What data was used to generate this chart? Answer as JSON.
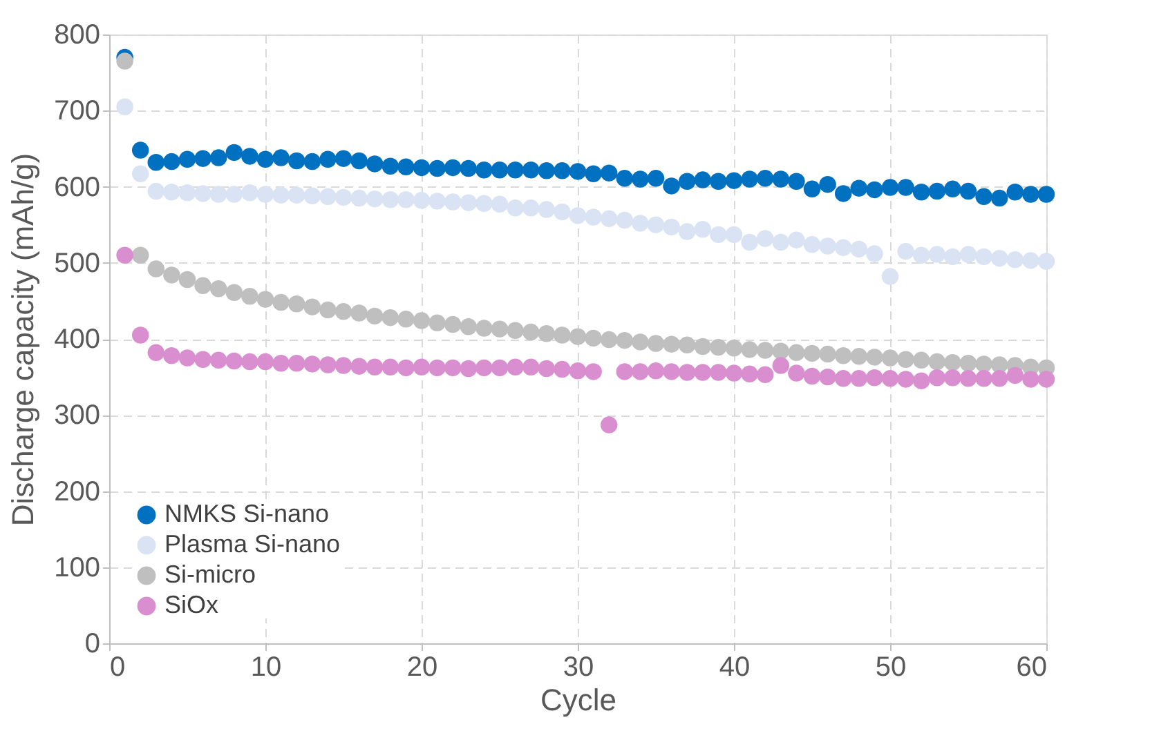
{
  "chart_data": {
    "type": "scatter",
    "xlabel": "Cycle",
    "ylabel": "Discharge capacity (mAh/g)",
    "x": [
      1,
      2,
      3,
      4,
      5,
      6,
      7,
      8,
      9,
      10,
      11,
      12,
      13,
      14,
      15,
      16,
      17,
      18,
      19,
      20,
      21,
      22,
      23,
      24,
      25,
      26,
      27,
      28,
      29,
      30,
      31,
      32,
      33,
      34,
      35,
      36,
      37,
      38,
      39,
      40,
      41,
      42,
      43,
      44,
      45,
      46,
      47,
      48,
      49,
      50,
      51,
      52,
      53,
      54,
      55,
      56,
      57,
      58,
      59,
      60
    ],
    "series": [
      {
        "name": "NMKS Si-nano",
        "color": "#0070c0",
        "values": [
          770,
          648,
          632,
          633,
          636,
          637,
          638,
          645,
          640,
          636,
          638,
          634,
          633,
          636,
          637,
          634,
          630,
          627,
          626,
          625,
          624,
          625,
          624,
          622,
          622,
          622,
          622,
          621,
          621,
          620,
          617,
          618,
          611,
          610,
          611,
          601,
          607,
          609,
          607,
          608,
          610,
          611,
          610,
          607,
          597,
          603,
          591,
          598,
          596,
          599,
          599,
          593,
          594,
          597,
          594,
          587,
          585,
          593,
          590,
          590
        ]
      },
      {
        "name": "Plasma Si-nano",
        "color": "#dae3f3",
        "values": [
          705,
          617,
          594,
          593,
          592,
          591,
          590,
          590,
          592,
          590,
          589,
          589,
          588,
          587,
          586,
          585,
          584,
          583,
          583,
          582,
          581,
          580,
          579,
          578,
          577,
          572,
          572,
          570,
          567,
          562,
          560,
          558,
          556,
          552,
          550,
          547,
          541,
          544,
          537,
          537,
          527,
          532,
          527,
          530,
          524,
          522,
          520,
          518,
          512,
          482,
          515,
          510,
          511,
          508,
          511,
          508,
          506,
          504,
          503,
          502
        ]
      },
      {
        "name": "Si-micro",
        "color": "#bfbfbf",
        "values": [
          765,
          510,
          492,
          484,
          478,
          470,
          466,
          461,
          456,
          452,
          448,
          446,
          442,
          438,
          436,
          434,
          430,
          428,
          426,
          424,
          421,
          419,
          416,
          414,
          413,
          411,
          409,
          407,
          405,
          403,
          401,
          399,
          398,
          396,
          394,
          393,
          392,
          390,
          389,
          388,
          386,
          385,
          384,
          382,
          381,
          380,
          378,
          377,
          376,
          375,
          373,
          372,
          370,
          369,
          368,
          367,
          366,
          365,
          363,
          362
        ]
      },
      {
        "name": "SiOx",
        "color": "#d98ed0",
        "values": [
          510,
          405,
          382,
          378,
          375,
          373,
          372,
          371,
          370,
          370,
          368,
          368,
          367,
          366,
          365,
          364,
          363,
          363,
          362,
          363,
          362,
          362,
          361,
          362,
          362,
          363,
          363,
          361,
          360,
          358,
          357,
          287,
          357,
          357,
          358,
          357,
          356,
          356,
          356,
          355,
          354,
          353,
          365,
          355,
          351,
          350,
          348,
          348,
          349,
          348,
          347,
          345,
          349,
          349,
          348,
          348,
          348,
          352,
          347,
          347
        ]
      }
    ],
    "xlim": [
      0,
      60
    ],
    "xticks": [
      0,
      10,
      20,
      30,
      40,
      50,
      60
    ],
    "ylim": [
      0,
      800
    ],
    "yticks": [
      0,
      100,
      200,
      300,
      400,
      500,
      600,
      700,
      800
    ],
    "grid": true,
    "legend": "bottom left",
    "marker": "circle"
  }
}
